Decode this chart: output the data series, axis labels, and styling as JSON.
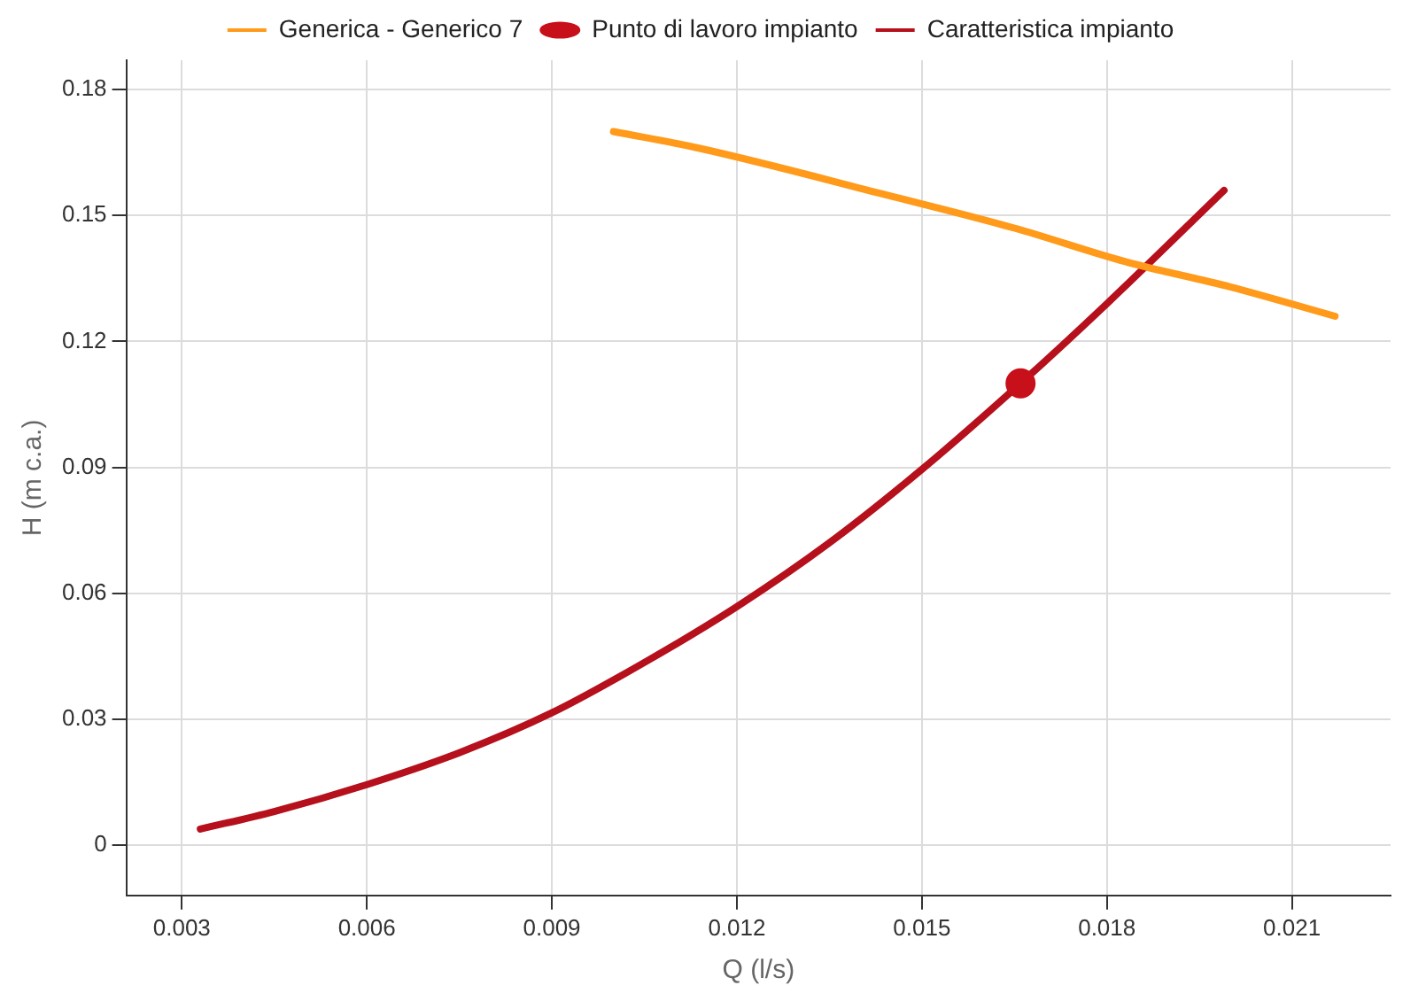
{
  "chart_data": {
    "type": "line",
    "xlabel": "Q (l/s)",
    "ylabel": "H (m c.a.)",
    "xlim": [
      0.0021,
      0.0226
    ],
    "ylim": [
      -0.012,
      0.187
    ],
    "xticks": [
      0.003,
      0.006,
      0.009,
      0.012,
      0.015,
      0.018,
      0.021
    ],
    "yticks": [
      0,
      0.03,
      0.06,
      0.09,
      0.12,
      0.15,
      0.18
    ],
    "grid": true,
    "legend": "top",
    "marker": "none",
    "series": [
      {
        "name": "Generica - Generico 7",
        "color": "#ff9a1a",
        "x": [
          0.01,
          0.0114,
          0.0144,
          0.0165,
          0.0183,
          0.02,
          0.0217
        ],
        "values": [
          0.17,
          0.166,
          0.155,
          0.147,
          0.139,
          0.133,
          0.126
        ]
      },
      {
        "name": "Punto di lavoro impianto",
        "type": "scatter",
        "marker": "circle",
        "color": "#c8101a",
        "x": [
          0.0166
        ],
        "values": [
          0.11
        ]
      },
      {
        "name": "Caratteristica impianto",
        "color": "#b5101c",
        "x": [
          0.0033,
          0.0045,
          0.006,
          0.0075,
          0.009,
          0.0105,
          0.012,
          0.0135,
          0.015,
          0.0166,
          0.018,
          0.0199
        ],
        "values": [
          0.0038,
          0.008,
          0.0144,
          0.022,
          0.0315,
          0.0435,
          0.0568,
          0.072,
          0.0895,
          0.11,
          0.129,
          0.156
        ]
      }
    ]
  }
}
